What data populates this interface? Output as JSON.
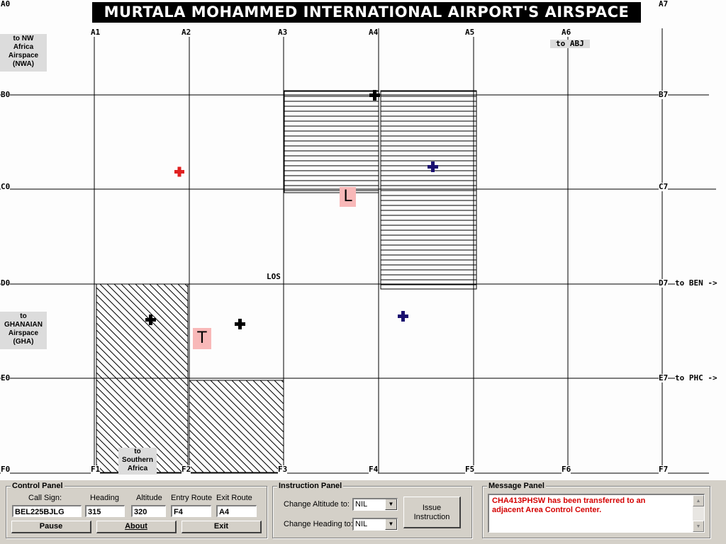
{
  "title": "MURTALA MOHAMMED INTERNATIONAL AIRPORT'S AIRSPACE",
  "grid": {
    "top": [
      "A0",
      "A1",
      "A2",
      "A3",
      "A4",
      "A5",
      "A6",
      "A7"
    ],
    "bottom": [
      "F0",
      "F1",
      "F2",
      "F3",
      "F4",
      "F5",
      "F6",
      "F7"
    ],
    "left": [
      "B0",
      "C0",
      "D0",
      "E0"
    ],
    "right": [
      "B7",
      "C7",
      "D7",
      "E7"
    ]
  },
  "route_labels": {
    "to_abj": "to ABJ",
    "to_ben": "to BEN ->",
    "to_phc": "to PHC ->",
    "los": "LOS"
  },
  "side_boxes": {
    "nwa": [
      "to NW",
      "Africa",
      "Airspace",
      "(NWA)"
    ],
    "gha": [
      "to",
      "GHANAIAN",
      "Airspace",
      "(GHA)"
    ],
    "south": [
      "to",
      "Southern",
      "Africa"
    ]
  },
  "markers": {
    "landing": "L",
    "takeoff": "T"
  },
  "colors": {
    "conflict_aircraft": "#e02020",
    "selected_aircraft": "#1a1070",
    "normal_aircraft": "#000000",
    "marker_bg": "#f8b8b8",
    "message_text": "#d40000"
  },
  "control_panel": {
    "title": "Control Panel",
    "labels": {
      "call_sign": "Call Sign:",
      "heading": "Heading",
      "altitude": "Altitude",
      "entry_route": "Entry Route",
      "exit_route": "Exit Route"
    },
    "values": {
      "call_sign": "BEL225BJLG",
      "heading": "315",
      "altitude": "320",
      "entry_route": "F4",
      "exit_route": "A4"
    },
    "buttons": {
      "pause": "Pause",
      "about": "About",
      "exit": "Exit"
    }
  },
  "instruction_panel": {
    "title": "Instruction Panel",
    "change_altitude_label": "Change Altitude to:",
    "change_altitude_value": "NIL",
    "change_heading_label": "Change Heading to:",
    "change_heading_value": "NIL",
    "issue_button": [
      "Issue",
      "Instruction"
    ]
  },
  "message_panel": {
    "title": "Message Panel",
    "lines": [
      "CHA413PHSW has been transferred to an",
      "adjacent Area Control Center."
    ]
  }
}
